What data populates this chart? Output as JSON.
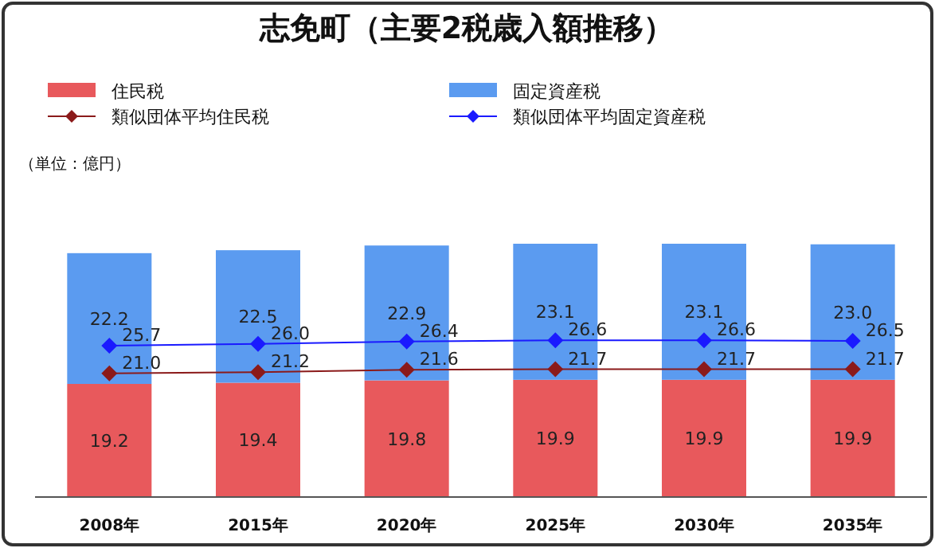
{
  "chart_data": {
    "type": "bar",
    "title": "志免町（主要2税歳入額推移）",
    "categories": [
      "2008年",
      "2015年",
      "2020年",
      "2025年",
      "2030年",
      "2035年"
    ],
    "stacked": true,
    "tick_labels": "x",
    "legend": "top",
    "marker": "diamond",
    "annotations": [
      "（単位：億円）"
    ],
    "series": [
      {
        "name": "住民税",
        "color": "#e8595c",
        "values": [
          19.2,
          19.4,
          19.8,
          19.9,
          19.9,
          19.9
        ],
        "value_labels": [
          "19.2",
          "19.4",
          "19.8",
          "19.9",
          "19.9",
          "19.9"
        ]
      },
      {
        "name": "固定資産税",
        "color": "#5b9bf0",
        "values": [
          22.2,
          22.5,
          22.9,
          23.1,
          23.1,
          23.0
        ],
        "value_labels": [
          "22.2",
          "22.5",
          "22.9",
          "23.1",
          "23.1",
          "23.0"
        ]
      },
      {
        "name": "類似団体平均住民税",
        "type": "line",
        "color": "#8b1a1a",
        "values": [
          21.0,
          21.2,
          21.6,
          21.7,
          21.7,
          21.7
        ],
        "value_labels": [
          "21.0",
          "21.2",
          "21.6",
          "21.7",
          "21.7",
          "21.7"
        ]
      },
      {
        "name": "類似団体平均固定資産税",
        "type": "line",
        "color": "#1a1aff",
        "values": [
          25.7,
          26.0,
          26.4,
          26.6,
          26.6,
          26.5
        ],
        "value_labels": [
          "25.7",
          "26.0",
          "26.4",
          "26.6",
          "26.6",
          "26.5"
        ]
      }
    ]
  }
}
